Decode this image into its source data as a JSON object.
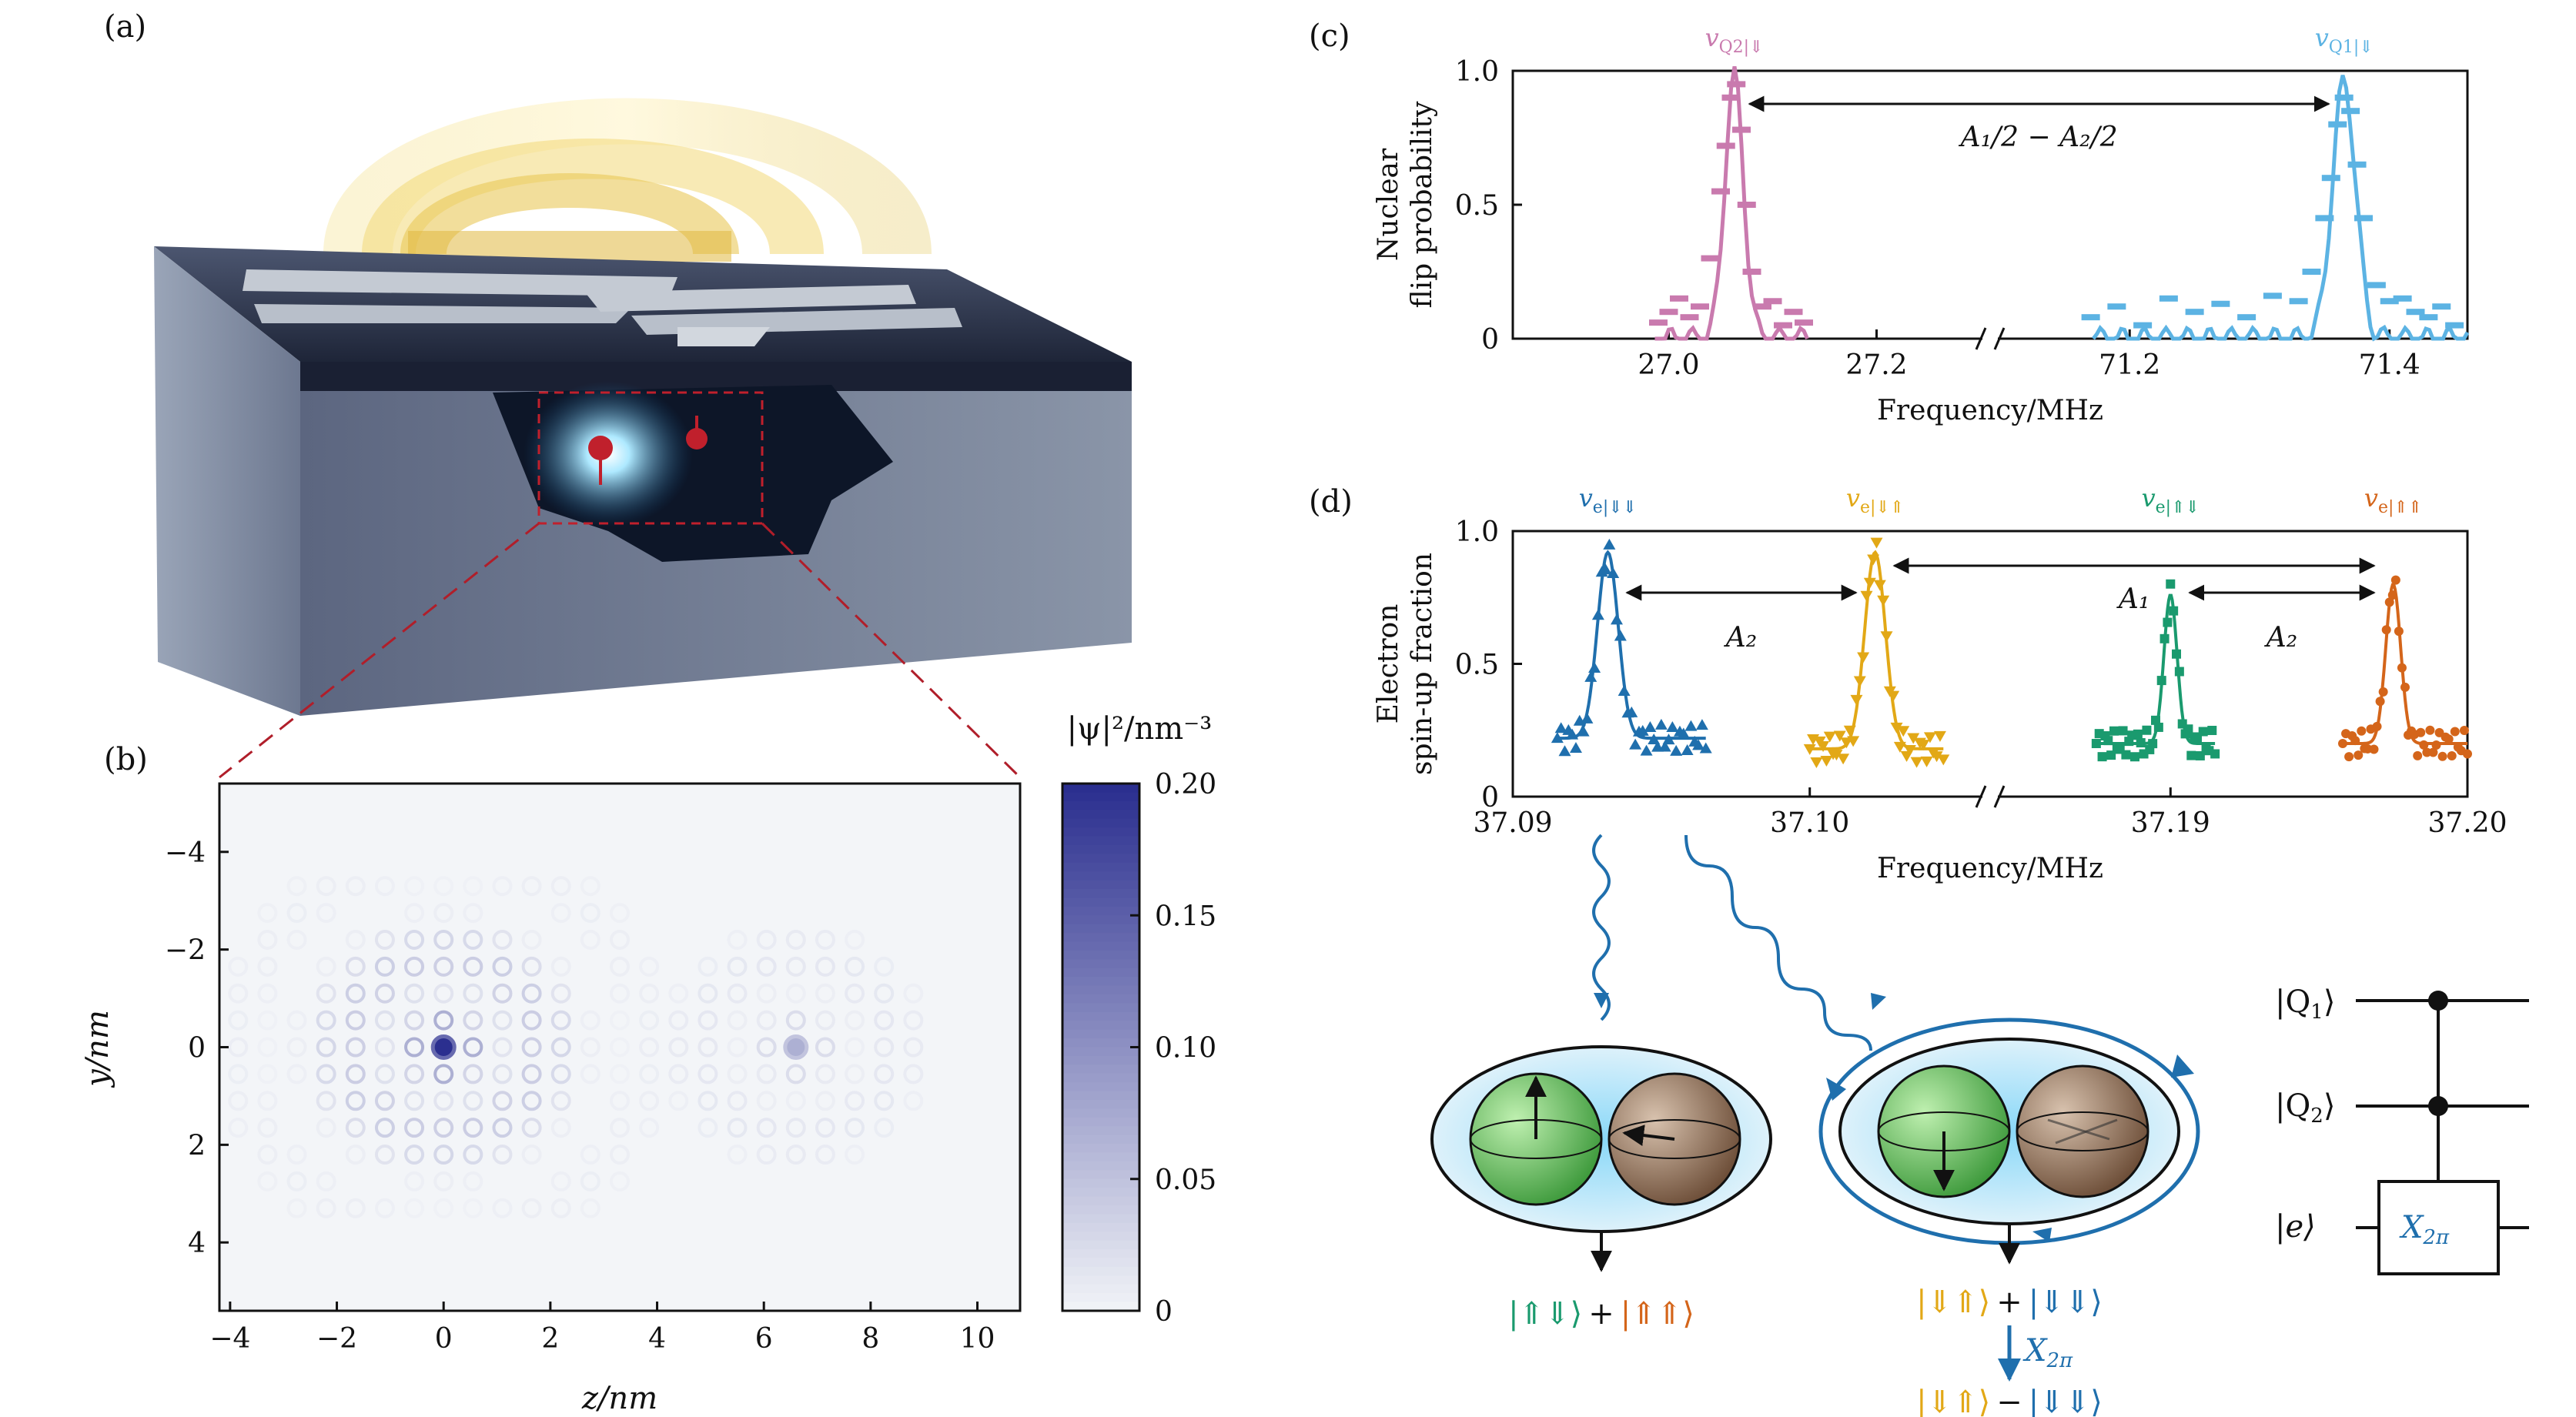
{
  "panels": {
    "a": {
      "label": "(a)"
    },
    "b": {
      "label": "(b)"
    },
    "c": {
      "label": "(c)"
    },
    "d": {
      "label": "(d)"
    }
  },
  "panel_b": {
    "xlabel": "z/nm",
    "ylabel": "y/nm",
    "x_ticks": [
      "−4",
      "−2",
      "0",
      "2",
      "4",
      "6",
      "8",
      "10"
    ],
    "x_tick_values": [
      -4,
      -2,
      0,
      2,
      4,
      6,
      8,
      10
    ],
    "y_ticks": [
      "−4",
      "−2",
      "0",
      "2",
      "4"
    ],
    "y_tick_values": [
      -4,
      -2,
      0,
      2,
      4
    ],
    "xlim": [
      -4.2,
      10.8
    ],
    "ylim": [
      -5.4,
      5.4
    ],
    "colorbar_label": "|ψ|²/nm⁻³",
    "colorbar_ticks": [
      "0.20",
      "0.15",
      "0.10",
      "0.05",
      "0"
    ],
    "colorbar_values": [
      0.2,
      0.15,
      0.1,
      0.05,
      0
    ],
    "colorbar_range": [
      0,
      0.2
    ],
    "colors": {
      "low": "#f3f5f8",
      "high": "#2b2f8f"
    },
    "donors": [
      {
        "z": 0,
        "y": 0,
        "peak": 0.2
      },
      {
        "z": 6.6,
        "y": 0,
        "peak": 0.07
      }
    ]
  },
  "chart_data": [
    {
      "type": "scatter",
      "panel": "c",
      "ylabel_line1": "Nuclear",
      "ylabel_line2": "flip probability",
      "xlabel": "Frequency/MHz",
      "y_ticks": [
        "0",
        "0.5",
        "1.0"
      ],
      "y_tick_values": [
        0,
        0.5,
        1.0
      ],
      "ylim": [
        0,
        1.0
      ],
      "broken_axis": true,
      "segments": [
        {
          "xlim": [
            26.85,
            27.25
          ],
          "x_ticks": [
            "27.0",
            "27.2"
          ],
          "x_tick_values": [
            27.0,
            27.2
          ]
        },
        {
          "xlim": [
            71.14,
            71.46
          ],
          "x_ticks": [
            "71.2",
            "71.4"
          ],
          "x_tick_values": [
            71.2,
            71.4
          ]
        }
      ],
      "series": [
        {
          "name": "vQ2|⇓",
          "color": "#c97aae",
          "center": 27.063,
          "width": 0.009,
          "peak": 0.98,
          "x": [
            26.99,
            27.0,
            27.01,
            27.02,
            27.03,
            27.04,
            27.05,
            27.055,
            27.06,
            27.065,
            27.07,
            27.075,
            27.08,
            27.09,
            27.1,
            27.11,
            27.12,
            27.13
          ],
          "y": [
            0.06,
            0.1,
            0.15,
            0.08,
            0.12,
            0.3,
            0.55,
            0.72,
            0.9,
            0.95,
            0.78,
            0.5,
            0.25,
            0.12,
            0.14,
            0.05,
            0.1,
            0.06
          ]
        },
        {
          "name": "vQ1|⇓",
          "color": "#5cb3e3",
          "center": 71.365,
          "width": 0.009,
          "peak": 0.96,
          "x": [
            71.17,
            71.19,
            71.21,
            71.23,
            71.25,
            71.27,
            71.29,
            71.31,
            71.33,
            71.34,
            71.35,
            71.355,
            71.36,
            71.365,
            71.37,
            71.375,
            71.38,
            71.39,
            71.4,
            71.41,
            71.42,
            71.43,
            71.44,
            71.45
          ],
          "y": [
            0.08,
            0.12,
            0.05,
            0.15,
            0.1,
            0.13,
            0.08,
            0.16,
            0.14,
            0.25,
            0.45,
            0.6,
            0.8,
            0.9,
            0.85,
            0.65,
            0.45,
            0.2,
            0.14,
            0.15,
            0.1,
            0.08,
            0.12,
            0.05
          ]
        }
      ],
      "annotation": "A₁/2 − A₂/2",
      "peak_labels": [
        {
          "text": "v",
          "sub": "Q2|⇓",
          "color": "#c97aae"
        },
        {
          "text": "v",
          "sub": "Q1|⇓",
          "color": "#5cb3e3"
        }
      ]
    },
    {
      "type": "scatter",
      "panel": "d",
      "ylabel_line1": "Electron",
      "ylabel_line2": "spin-up fraction",
      "xlabel": "Frequency/MHz",
      "y_ticks": [
        "0",
        "0.5",
        "1.0"
      ],
      "y_tick_values": [
        0,
        0.5,
        1.0
      ],
      "ylim": [
        0,
        1.0
      ],
      "broken_axis": true,
      "segments": [
        {
          "xlim": [
            37.09,
            37.104
          ],
          "x_ticks": [
            "37.09",
            "37.10"
          ],
          "x_tick_values": [
            37.09,
            37.1
          ]
        },
        {
          "xlim": [
            37.186,
            37.2
          ],
          "x_ticks": [
            "37.19",
            "37.20"
          ],
          "x_tick_values": [
            37.19,
            37.2
          ]
        }
      ],
      "series": [
        {
          "name": "ve|⇓⇓",
          "color": "#1f6fad",
          "marker": "triangle-up",
          "center": 37.0932,
          "width": 0.00035,
          "peak": 0.92,
          "base": 0.22,
          "x_range": [
            37.0915,
            37.0965
          ]
        },
        {
          "name": "ve|⇓⇑",
          "color": "#e2a816",
          "marker": "triangle-down",
          "center": 37.1022,
          "width": 0.00035,
          "peak": 0.92,
          "base": 0.18,
          "x_range": [
            37.1,
            37.1045
          ]
        },
        {
          "name": "ve|⇑⇓",
          "color": "#1a9a6e",
          "marker": "square",
          "center": 37.19,
          "width": 0.00022,
          "peak": 0.76,
          "base": 0.2,
          "x_range": [
            37.1875,
            37.1915
          ]
        },
        {
          "name": "ve|⇑⇑",
          "color": "#d4651a",
          "marker": "circle",
          "center": 37.1975,
          "width": 0.00025,
          "peak": 0.8,
          "base": 0.2,
          "x_range": [
            37.1958,
            37.2
          ]
        }
      ],
      "annotations": [
        "A₂",
        "A₁",
        "A₂"
      ],
      "peak_labels": [
        {
          "text": "v",
          "sub": "e|⇓⇓",
          "color": "#1f6fad"
        },
        {
          "text": "v",
          "sub": "e|⇓⇑",
          "color": "#e2a816"
        },
        {
          "text": "v",
          "sub": "e|⇑⇓",
          "color": "#1a9a6e"
        },
        {
          "text": "v",
          "sub": "e|⇑⇑",
          "color": "#d4651a"
        }
      ]
    }
  ],
  "states": {
    "left_ket_a": "|⇑⇓⟩",
    "left_plus": "+",
    "left_ket_b": "|⇑⇑⟩",
    "right_ket_a": "|⇓⇑⟩",
    "right_plus": "+",
    "right_ket_b": "|⇓⇓⟩",
    "gate_label": "X",
    "gate_sub": "2π",
    "right2_ket_a": "|⇓⇑⟩",
    "right2_minus": "−",
    "right2_ket_b": "|⇓⇓⟩"
  },
  "circuit": {
    "q1": "|Q",
    "q1_sub": "1",
    "q2": "|Q",
    "q2_sub": "2",
    "e": "|e⟩",
    "ket_close": "⟩",
    "gate": "X",
    "gate_sub": "2π"
  },
  "colors": {
    "green": "#1a9a6e",
    "orange": "#d4651a",
    "yellow": "#e2a816",
    "blue": "#1f6fad",
    "dark_red": "#b01e2a",
    "nucleus_green": "#5fb45c",
    "nucleus_brown": "#8a6a52",
    "cloud": "#8cd6f5"
  }
}
